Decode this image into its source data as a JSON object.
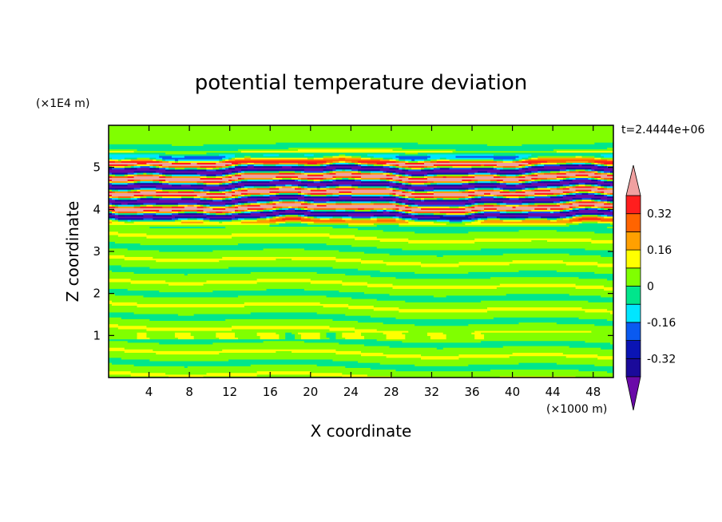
{
  "chart_data": {
    "type": "heatmap",
    "title": "potential temperature deviation",
    "xlabel": "X coordinate",
    "ylabel": "Z coordinate",
    "x_unit": "(×1000 m)",
    "y_unit": "(×1E4 m)",
    "time_label": "t=2.4444e+06",
    "xlim": [
      0,
      50
    ],
    "ylim": [
      0,
      6
    ],
    "x_ticks": [
      "4",
      "8",
      "12",
      "16",
      "20",
      "24",
      "28",
      "32",
      "36",
      "40",
      "44",
      "48"
    ],
    "y_ticks": [
      "1",
      "2",
      "3",
      "4",
      "5"
    ],
    "colorbar": {
      "labels": [
        "0.32",
        "0.16",
        "0",
        "-0.16",
        "-0.32"
      ],
      "levels": [
        -0.4,
        -0.32,
        -0.24,
        -0.16,
        -0.08,
        0,
        0.08,
        0.16,
        0.24,
        0.32,
        0.4
      ],
      "colors": [
        "#6a0aa8",
        "#1a0a9a",
        "#0a14b4",
        "#0a5af0",
        "#00e6ff",
        "#00e68c",
        "#80ff00",
        "#ffff00",
        "#ffa000",
        "#ff6400",
        "#ff1e1e",
        "#f0a0a0"
      ],
      "extend": "both"
    }
  }
}
